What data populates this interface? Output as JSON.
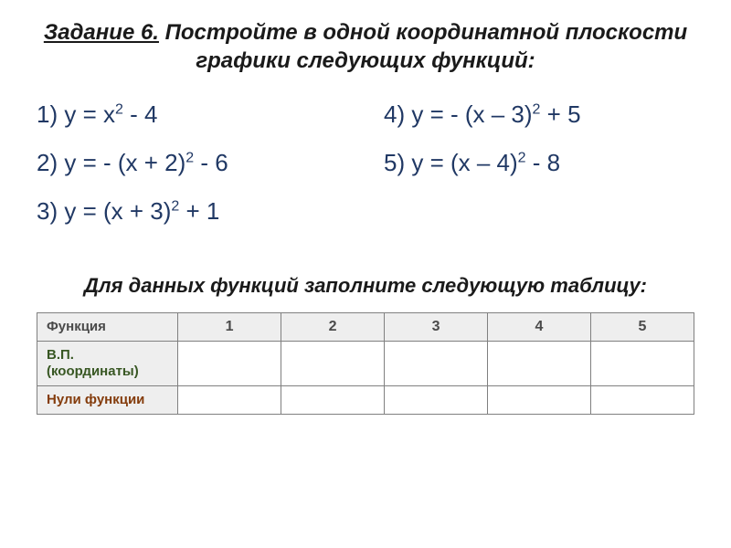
{
  "title": {
    "task_label": "Задание 6.",
    "text": " Постройте в одной координатной плоскости графики следующих функций:"
  },
  "functions": {
    "left": [
      {
        "num": "1)",
        "expr": "y = x<sup>2</sup> - 4"
      },
      {
        "num": "2)",
        "expr": "y = - (x + 2)<sup>2</sup> - 6"
      },
      {
        "num": "3)",
        "expr": "y = (x + 3)<sup>2</sup>  + 1"
      }
    ],
    "right": [
      {
        "num": "4)",
        "expr": "y = - (x – 3)<sup>2</sup> + 5"
      },
      {
        "num": "5)",
        "expr": "y = (x – 4)<sup>2</sup> - 8"
      }
    ]
  },
  "subtitle": "Для данных функций заполните следующую таблицу:",
  "table": {
    "header": [
      "Функция",
      "1",
      "2",
      "3",
      "4",
      "5"
    ],
    "rows": [
      {
        "label": "В.П. (координаты)",
        "class": "vp",
        "cells": [
          "",
          "",
          "",
          "",
          ""
        ]
      },
      {
        "label": "Нули функции",
        "class": "zero",
        "cells": [
          "",
          "",
          "",
          "",
          ""
        ]
      }
    ]
  },
  "colors": {
    "title_text": "#1a1a1a",
    "func_text": "#203864",
    "table_border": "#808080",
    "table_header_bg": "#eeeeee",
    "row_vp_color": "#385723",
    "row_zero_color": "#843c0c"
  }
}
